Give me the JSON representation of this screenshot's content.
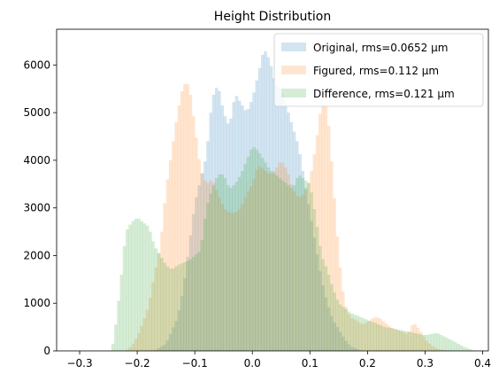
{
  "chart_data": {
    "type": "bar",
    "title": "Height Distribution",
    "xlabel": "",
    "ylabel": "",
    "xlim": [
      -0.34,
      0.41
    ],
    "ylim": [
      0,
      6750
    ],
    "xticks": [
      -0.3,
      -0.2,
      -0.1,
      0.0,
      0.1,
      0.2,
      0.3,
      0.4
    ],
    "xtick_labels": [
      "−0.3",
      "−0.2",
      "−0.1",
      "0.0",
      "0.1",
      "0.2",
      "0.3",
      "0.4"
    ],
    "yticks": [
      0,
      1000,
      2000,
      3000,
      4000,
      5000,
      6000
    ],
    "ytick_labels": [
      "0",
      "1000",
      "2000",
      "3000",
      "4000",
      "5000",
      "6000"
    ],
    "grid": false,
    "legend_position": "top-right",
    "series": [
      {
        "name": "Original, rms=0.0652 μm",
        "color": "#1f77b4",
        "opacity": 0.2,
        "points": [
          [
            -0.17,
            0
          ],
          [
            -0.15,
            150
          ],
          [
            -0.13,
            700
          ],
          [
            -0.12,
            1300
          ],
          [
            -0.11,
            2200
          ],
          [
            -0.1,
            3100
          ],
          [
            -0.09,
            3600
          ],
          [
            -0.08,
            4100
          ],
          [
            -0.07,
            5300
          ],
          [
            -0.06,
            5600
          ],
          [
            -0.05,
            5000
          ],
          [
            -0.04,
            4700
          ],
          [
            -0.03,
            5400
          ],
          [
            -0.02,
            5200
          ],
          [
            -0.01,
            5000
          ],
          [
            0.0,
            5300
          ],
          [
            0.01,
            5800
          ],
          [
            0.02,
            6350
          ],
          [
            0.03,
            6100
          ],
          [
            0.04,
            5600
          ],
          [
            0.05,
            5500
          ],
          [
            0.06,
            5100
          ],
          [
            0.07,
            4700
          ],
          [
            0.08,
            4300
          ],
          [
            0.09,
            3600
          ],
          [
            0.1,
            2900
          ],
          [
            0.11,
            2200
          ],
          [
            0.12,
            1500
          ],
          [
            0.13,
            1000
          ],
          [
            0.14,
            650
          ],
          [
            0.15,
            450
          ],
          [
            0.16,
            250
          ],
          [
            0.17,
            100
          ],
          [
            0.19,
            0
          ]
        ]
      },
      {
        "name": "Figured, rms=0.112 μm",
        "color": "#ff7f0e",
        "opacity": 0.2,
        "points": [
          [
            -0.22,
            0
          ],
          [
            -0.21,
            100
          ],
          [
            -0.2,
            300
          ],
          [
            -0.19,
            600
          ],
          [
            -0.18,
            950
          ],
          [
            -0.17,
            1600
          ],
          [
            -0.16,
            2200
          ],
          [
            -0.15,
            3400
          ],
          [
            -0.14,
            4200
          ],
          [
            -0.13,
            5000
          ],
          [
            -0.12,
            5600
          ],
          [
            -0.11,
            5600
          ],
          [
            -0.1,
            4700
          ],
          [
            -0.09,
            3800
          ],
          [
            -0.08,
            3500
          ],
          [
            -0.07,
            3600
          ],
          [
            -0.06,
            3300
          ],
          [
            -0.05,
            3000
          ],
          [
            -0.04,
            2900
          ],
          [
            -0.03,
            2900
          ],
          [
            -0.02,
            3000
          ],
          [
            -0.01,
            3300
          ],
          [
            0.0,
            3500
          ],
          [
            0.01,
            3900
          ],
          [
            0.02,
            3800
          ],
          [
            0.03,
            3700
          ],
          [
            0.04,
            3800
          ],
          [
            0.05,
            4000
          ],
          [
            0.06,
            3800
          ],
          [
            0.07,
            3400
          ],
          [
            0.08,
            3200
          ],
          [
            0.09,
            3300
          ],
          [
            0.1,
            3600
          ],
          [
            0.11,
            4300
          ],
          [
            0.12,
            5200
          ],
          [
            0.13,
            5100
          ],
          [
            0.14,
            3600
          ],
          [
            0.15,
            2000
          ],
          [
            0.16,
            1000
          ],
          [
            0.17,
            700
          ],
          [
            0.18,
            650
          ],
          [
            0.19,
            550
          ],
          [
            0.2,
            600
          ],
          [
            0.21,
            700
          ],
          [
            0.22,
            700
          ],
          [
            0.23,
            600
          ],
          [
            0.24,
            500
          ],
          [
            0.25,
            450
          ],
          [
            0.26,
            400
          ],
          [
            0.27,
            350
          ],
          [
            0.28,
            600
          ],
          [
            0.29,
            450
          ],
          [
            0.3,
            250
          ],
          [
            0.31,
            120
          ],
          [
            0.32,
            50
          ],
          [
            0.33,
            20
          ],
          [
            0.34,
            0
          ]
        ]
      },
      {
        "name": "Difference, rms=0.121 μm",
        "color": "#2ca02c",
        "opacity": 0.2,
        "points": [
          [
            -0.245,
            0
          ],
          [
            -0.24,
            300
          ],
          [
            -0.23,
            1300
          ],
          [
            -0.22,
            2500
          ],
          [
            -0.21,
            2700
          ],
          [
            -0.2,
            2800
          ],
          [
            -0.19,
            2700
          ],
          [
            -0.18,
            2600
          ],
          [
            -0.17,
            2200
          ],
          [
            -0.16,
            2000
          ],
          [
            -0.15,
            1800
          ],
          [
            -0.14,
            1700
          ],
          [
            -0.13,
            1800
          ],
          [
            -0.12,
            1850
          ],
          [
            -0.11,
            1900
          ],
          [
            -0.1,
            2000
          ],
          [
            -0.09,
            2100
          ],
          [
            -0.08,
            3000
          ],
          [
            -0.07,
            3400
          ],
          [
            -0.06,
            3700
          ],
          [
            -0.05,
            3700
          ],
          [
            -0.04,
            3400
          ],
          [
            -0.03,
            3500
          ],
          [
            -0.02,
            3700
          ],
          [
            -0.01,
            4000
          ],
          [
            0.0,
            4300
          ],
          [
            0.01,
            4200
          ],
          [
            0.02,
            4000
          ],
          [
            0.03,
            3800
          ],
          [
            0.04,
            3700
          ],
          [
            0.05,
            3600
          ],
          [
            0.06,
            3500
          ],
          [
            0.07,
            3400
          ],
          [
            0.08,
            3700
          ],
          [
            0.09,
            3600
          ],
          [
            0.1,
            3500
          ],
          [
            0.11,
            2800
          ],
          [
            0.12,
            2000
          ],
          [
            0.13,
            1700
          ],
          [
            0.14,
            1300
          ],
          [
            0.15,
            1000
          ],
          [
            0.16,
            900
          ],
          [
            0.17,
            800
          ],
          [
            0.18,
            750
          ],
          [
            0.19,
            700
          ],
          [
            0.2,
            650
          ],
          [
            0.21,
            600
          ],
          [
            0.22,
            550
          ],
          [
            0.23,
            500
          ],
          [
            0.24,
            480
          ],
          [
            0.25,
            450
          ],
          [
            0.26,
            430
          ],
          [
            0.27,
            400
          ],
          [
            0.28,
            380
          ],
          [
            0.29,
            350
          ],
          [
            0.3,
            330
          ],
          [
            0.31,
            350
          ],
          [
            0.32,
            380
          ],
          [
            0.33,
            320
          ],
          [
            0.34,
            260
          ],
          [
            0.35,
            200
          ],
          [
            0.36,
            130
          ],
          [
            0.37,
            70
          ],
          [
            0.38,
            30
          ],
          [
            0.385,
            0
          ]
        ]
      }
    ]
  }
}
